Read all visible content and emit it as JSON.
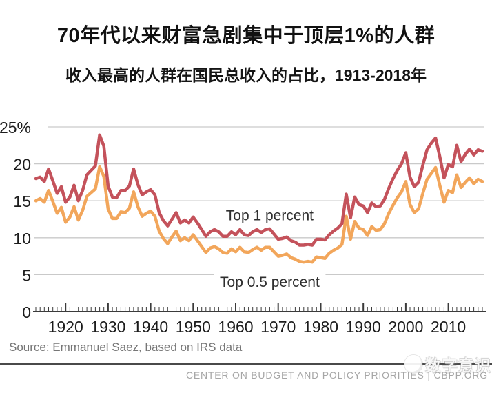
{
  "title": "70年代以来财富急剧集中于顶层1%的人群",
  "subtitle": "收入最高的人群在国民总收入的占比，1913-2018年",
  "source": "Source: Emmanuel Saez, based on IRS data",
  "footer": {
    "org": "CENTER ON BUDGET AND POLICY PRIORITIES | CBPP.ORG"
  },
  "watermark": {
    "text": "数字意识",
    "icon": "round-mascot-logo"
  },
  "colors": {
    "top1_line": "#c4525b",
    "top05_line": "#f2a65b",
    "gridline": "#c9c9c9",
    "axis": "#3b3b3b",
    "tick_label": "#1c1c1c",
    "annotation_text": "#2f2f2f"
  },
  "chart_data": {
    "type": "line",
    "title": "70年代以来财富急剧集中于顶层1%的人群",
    "subtitle": "收入最高的人群在国民总收入的占比，1913-2018年",
    "xlabel": "",
    "ylabel": "",
    "xlim": [
      1913,
      2018
    ],
    "ylim": [
      0,
      25
    ],
    "grid": "horizontal",
    "legend_position": "inline-annotations",
    "yticks": [
      0,
      5,
      10,
      15,
      20,
      25
    ],
    "ytick_labels": [
      "0",
      "5",
      "10",
      "15",
      "20",
      "25%"
    ],
    "xticks": [
      1920,
      1930,
      1940,
      1950,
      1960,
      1970,
      1980,
      1990,
      2000,
      2010
    ],
    "x": [
      1913,
      1914,
      1915,
      1916,
      1917,
      1918,
      1919,
      1920,
      1921,
      1922,
      1923,
      1924,
      1925,
      1926,
      1927,
      1928,
      1929,
      1930,
      1931,
      1932,
      1933,
      1934,
      1935,
      1936,
      1937,
      1938,
      1939,
      1940,
      1941,
      1942,
      1943,
      1944,
      1945,
      1946,
      1947,
      1948,
      1949,
      1950,
      1951,
      1952,
      1953,
      1954,
      1955,
      1956,
      1957,
      1958,
      1959,
      1960,
      1961,
      1962,
      1963,
      1964,
      1965,
      1966,
      1967,
      1968,
      1969,
      1970,
      1971,
      1972,
      1973,
      1974,
      1975,
      1976,
      1977,
      1978,
      1979,
      1980,
      1981,
      1982,
      1983,
      1984,
      1985,
      1986,
      1987,
      1988,
      1989,
      1990,
      1991,
      1992,
      1993,
      1994,
      1995,
      1996,
      1997,
      1998,
      1999,
      2000,
      2001,
      2002,
      2003,
      2004,
      2005,
      2006,
      2007,
      2008,
      2009,
      2010,
      2011,
      2012,
      2013,
      2014,
      2015,
      2016,
      2017,
      2018
    ],
    "series": [
      {
        "name": "Top 1 percent",
        "color": "#c4525b",
        "values": [
          18.0,
          18.2,
          17.6,
          19.3,
          17.7,
          16.0,
          16.9,
          14.8,
          15.5,
          17.1,
          15.0,
          16.4,
          18.5,
          19.1,
          19.7,
          23.9,
          22.4,
          17.0,
          15.5,
          15.4,
          16.4,
          16.4,
          17.0,
          19.3,
          17.2,
          15.8,
          16.2,
          16.5,
          15.8,
          13.4,
          12.3,
          11.6,
          12.5,
          13.4,
          12.0,
          12.4,
          12.0,
          12.8,
          12.0,
          11.1,
          10.2,
          10.8,
          11.1,
          10.8,
          10.2,
          10.2,
          10.8,
          10.4,
          11.1,
          10.4,
          10.3,
          10.8,
          11.1,
          10.7,
          11.1,
          11.2,
          10.5,
          9.8,
          9.9,
          10.1,
          9.6,
          9.4,
          9.0,
          9.0,
          9.1,
          9.0,
          9.8,
          9.8,
          9.7,
          10.4,
          10.9,
          11.3,
          11.9,
          15.9,
          12.7,
          15.5,
          14.5,
          14.3,
          13.4,
          14.7,
          14.2,
          14.3,
          15.2,
          16.7,
          18.0,
          19.1,
          20.0,
          21.5,
          18.2,
          16.9,
          17.5,
          19.8,
          21.9,
          22.8,
          23.5,
          21.0,
          18.1,
          19.9,
          19.6,
          22.5,
          20.3,
          21.3,
          22.0,
          21.2,
          21.9,
          21.7
        ]
      },
      {
        "name": "Top 0.5 percent",
        "color": "#f2a65b",
        "values": [
          15.0,
          15.3,
          14.8,
          16.4,
          14.9,
          13.3,
          14.1,
          12.1,
          12.8,
          14.2,
          12.4,
          13.7,
          15.6,
          16.1,
          16.6,
          19.6,
          18.3,
          13.9,
          12.6,
          12.6,
          13.5,
          13.4,
          14.0,
          16.2,
          14.2,
          12.9,
          13.3,
          13.6,
          12.9,
          10.9,
          9.9,
          9.2,
          10.1,
          10.9,
          9.6,
          10.0,
          9.6,
          10.4,
          9.6,
          8.8,
          8.0,
          8.6,
          8.8,
          8.5,
          8.0,
          7.9,
          8.5,
          8.1,
          8.7,
          8.1,
          8.0,
          8.4,
          8.7,
          8.3,
          8.7,
          8.7,
          8.1,
          7.5,
          7.6,
          7.8,
          7.3,
          7.1,
          6.8,
          6.7,
          6.8,
          6.7,
          7.4,
          7.3,
          7.2,
          7.9,
          8.3,
          8.6,
          9.1,
          12.9,
          9.8,
          12.2,
          11.3,
          11.1,
          10.3,
          11.5,
          11.0,
          11.1,
          11.9,
          13.3,
          14.4,
          15.4,
          16.2,
          17.6,
          14.5,
          13.4,
          13.9,
          16.0,
          17.9,
          18.7,
          19.5,
          17.1,
          14.8,
          16.4,
          16.1,
          18.5,
          16.8,
          17.5,
          18.1,
          17.3,
          17.9,
          17.6
        ]
      }
    ],
    "annotations": [
      {
        "text": "Top 1 percent",
        "year": 1968,
        "value": 13.0
      },
      {
        "text": "Top 0.5 percent",
        "year": 1968,
        "value": 4.0
      }
    ]
  }
}
